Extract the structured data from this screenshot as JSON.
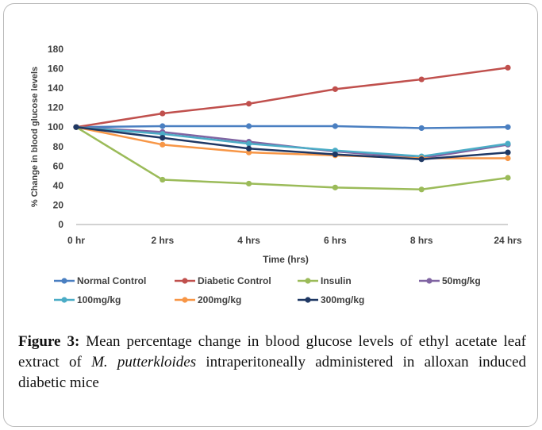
{
  "colors": {
    "normal_control": "#4a7fc1",
    "diabetic_control": "#c0504d",
    "insulin": "#9bbb59",
    "mg50": "#8064a2",
    "mg100": "#4bacc6",
    "mg200": "#f79646",
    "mg300": "#1f3864",
    "axis": "#a6a6a6",
    "text": "#3f3f3f"
  },
  "chart_data": {
    "type": "line",
    "title": "",
    "xlabel": "Time (hrs)",
    "ylabel": "% Change in blood glucose levels",
    "categories": [
      "0 hr",
      "2 hrs",
      "4 hrs",
      "6 hrs",
      "8 hrs",
      "24 hrs"
    ],
    "ylim": [
      0,
      180
    ],
    "yticks": [
      0,
      20,
      40,
      60,
      80,
      100,
      120,
      140,
      160,
      180
    ],
    "grid": false,
    "legend_placement": "bottom",
    "series": [
      {
        "name": "Normal Control",
        "color_key": "normal_control",
        "values": [
          100,
          101,
          101,
          101,
          99,
          100
        ]
      },
      {
        "name": "Diabetic Control",
        "color_key": "diabetic_control",
        "values": [
          100,
          114,
          124,
          139,
          149,
          161
        ]
      },
      {
        "name": "Insulin",
        "color_key": "insulin",
        "values": [
          100,
          46,
          42,
          38,
          36,
          48
        ]
      },
      {
        "name": "50mg/kg",
        "color_key": "mg50",
        "values": [
          100,
          95,
          85,
          75,
          68,
          82
        ]
      },
      {
        "name": "100mg/kg",
        "color_key": "mg100",
        "values": [
          100,
          93,
          83,
          76,
          70,
          83
        ]
      },
      {
        "name": "200mg/kg",
        "color_key": "mg200",
        "values": [
          100,
          82,
          74,
          71,
          68,
          68
        ]
      },
      {
        "name": "300mg/kg",
        "color_key": "mg300",
        "values": [
          100,
          89,
          78,
          72,
          67,
          74
        ]
      }
    ]
  },
  "caption": {
    "label": "Figure 3:",
    "text_before": " Mean percentage change in blood glucose levels of ethyl acetate leaf extract of ",
    "species": "M. putterkloides",
    "text_after": " intraperitoneally administered in alloxan induced diabetic mice"
  }
}
